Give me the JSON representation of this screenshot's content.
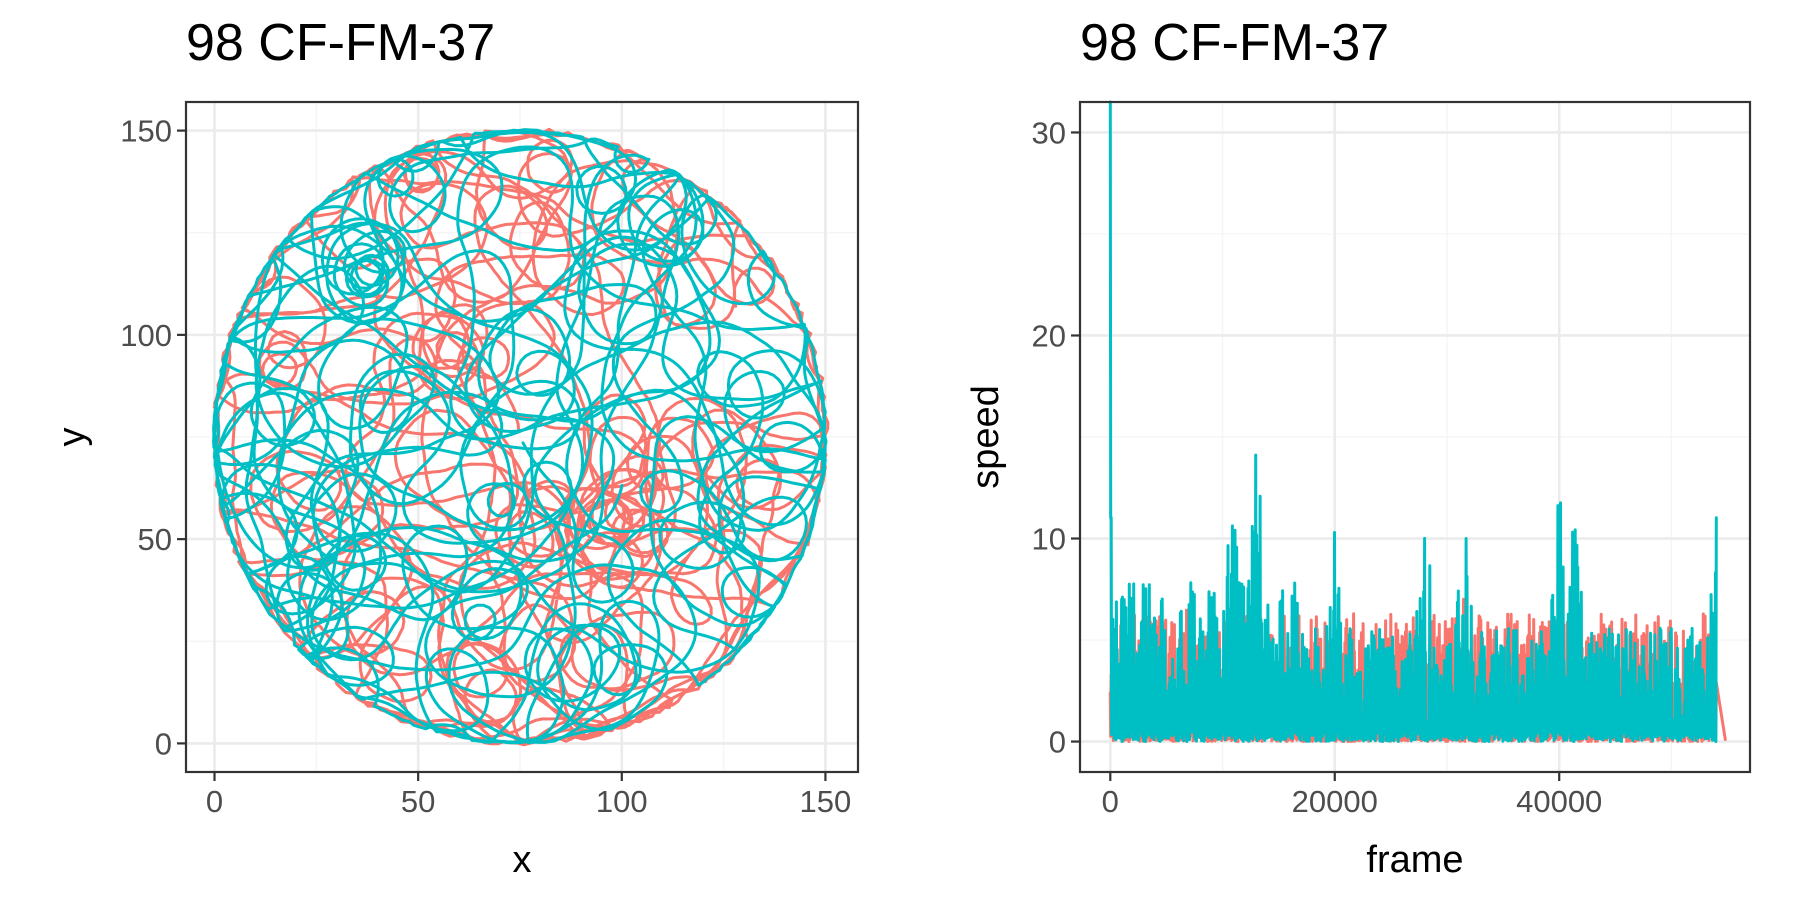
{
  "chart_data": [
    {
      "type": "line",
      "title": "98 CF-FM-37",
      "xlabel": "x",
      "ylabel": "y",
      "xlim": [
        -7,
        158
      ],
      "ylim": [
        -7,
        157
      ],
      "xticks": [
        0,
        50,
        100,
        150
      ],
      "yticks": [
        0,
        50,
        100,
        150
      ],
      "grid": true,
      "legend": "none",
      "description_shape": "circular trajectory centered near (75, 75) with radius about 75",
      "series": [
        {
          "color": "#F8766D",
          "center": [
            75,
            75
          ],
          "radius": 75,
          "x_range": [
            0,
            150
          ],
          "y_range": [
            0,
            150
          ]
        },
        {
          "color": "#00BFC4",
          "center": [
            75,
            75
          ],
          "radius": 75,
          "x_range": [
            0,
            150
          ],
          "y_range": [
            0,
            150
          ]
        }
      ]
    },
    {
      "type": "line",
      "title": "98 CF-FM-37",
      "xlabel": "frame",
      "ylabel": "speed",
      "xlim": [
        -2700,
        57000
      ],
      "ylim": [
        -1.5,
        31.5
      ],
      "xticks": [
        0,
        20000,
        40000
      ],
      "yticks": [
        0,
        10,
        20,
        30
      ],
      "grid": true,
      "legend": "none",
      "series": [
        {
          "color": "#F8766D",
          "x": [
            0,
            54000
          ],
          "peak_frames": [
            7000,
            31500,
            53000
          ],
          "peak_speeds": [
            9.7,
            8.5,
            6.5
          ],
          "tail_value": 0.1
        },
        {
          "color": "#00BFC4",
          "x": [
            0,
            54000
          ],
          "initial_spike": 31.5,
          "peak_frames": [
            11000,
            13000,
            20000,
            28000,
            31500,
            40000,
            41500,
            54000
          ],
          "peak_speeds": [
            13.9,
            14.2,
            11.4,
            11.6,
            12.8,
            12.1,
            11.7,
            11.2
          ],
          "typical_max": 8
        }
      ]
    }
  ]
}
